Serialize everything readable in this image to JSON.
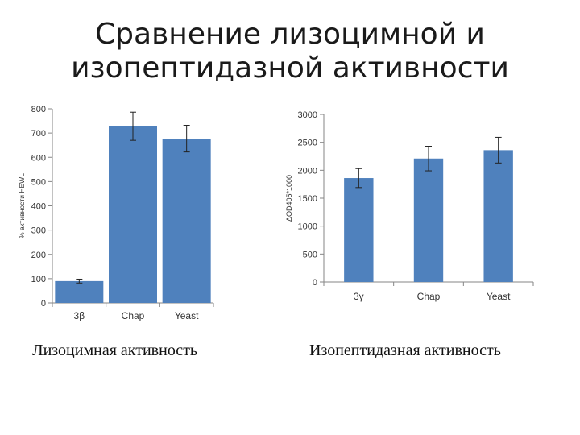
{
  "slide": {
    "title_line1": "Сравнение лизоцимной и",
    "title_line2": "изопептидазной активности"
  },
  "colors": {
    "bar": "#4f81bd",
    "axis": "#868686",
    "text": "#333333"
  },
  "chart_data": [
    {
      "type": "bar",
      "categories": [
        "3β",
        "Chap",
        "Yeast"
      ],
      "values": [
        90,
        728,
        677
      ],
      "error": [
        8,
        58,
        55
      ],
      "ylabel": "% активности HEWL",
      "ylim": [
        0,
        800
      ],
      "yticks": [
        0,
        100,
        200,
        300,
        400,
        500,
        600,
        700,
        800
      ],
      "grid": false,
      "caption": "Лизоцимная активность"
    },
    {
      "type": "bar",
      "categories": [
        "3γ",
        "Chap",
        "Yeast"
      ],
      "values": [
        1860,
        2210,
        2360
      ],
      "error": [
        170,
        220,
        230
      ],
      "ylabel": "ΔOD405*1000",
      "ylim": [
        0,
        3000
      ],
      "yticks": [
        0,
        500,
        1000,
        1500,
        2000,
        2500,
        3000
      ],
      "grid": false,
      "caption": "Изопептидазная активность"
    }
  ]
}
